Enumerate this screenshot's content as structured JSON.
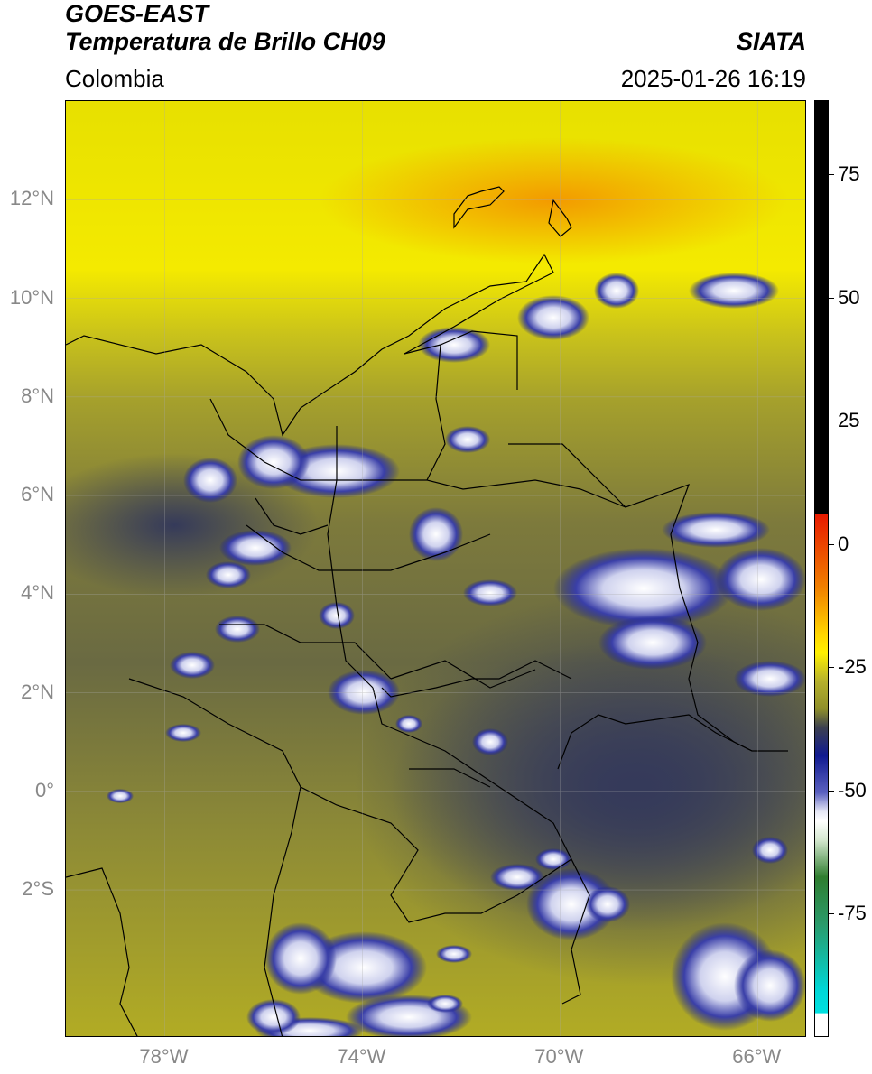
{
  "header": {
    "title_line1": "GOES-EAST",
    "title_line2": "Temperatura de Brillo CH09",
    "brand": "SIATA",
    "region": "Colombia",
    "datetime": "2025-01-26 16:19"
  },
  "axes": {
    "lat_ticks": [
      {
        "label": "12°N",
        "value": 12
      },
      {
        "label": "10°N",
        "value": 10
      },
      {
        "label": "8°N",
        "value": 8
      },
      {
        "label": "6°N",
        "value": 6
      },
      {
        "label": "4°N",
        "value": 4
      },
      {
        "label": "2°N",
        "value": 2
      },
      {
        "label": "0°",
        "value": 0
      },
      {
        "label": "2°S",
        "value": -2
      }
    ],
    "lon_ticks": [
      {
        "label": "78°W",
        "value": -78
      },
      {
        "label": "74°W",
        "value": -74
      },
      {
        "label": "70°W",
        "value": -70
      },
      {
        "label": "66°W",
        "value": -66
      }
    ],
    "lat_range": [
      -5.0,
      14.0
    ],
    "lon_range": [
      -80.0,
      -65.0
    ]
  },
  "colorbar": {
    "ticks": [
      {
        "label": "75",
        "value": 75
      },
      {
        "label": "50",
        "value": 50
      },
      {
        "label": "25",
        "value": 25
      },
      {
        "label": "0",
        "value": 0
      },
      {
        "label": "-25",
        "value": -25
      },
      {
        "label": "-50",
        "value": -50
      },
      {
        "label": "-75",
        "value": -75
      }
    ],
    "range": [
      -100,
      90
    ],
    "colors": {
      "above": "#000000",
      "red": "#e81a00",
      "orange": "#f08000",
      "yellow": "#fff000",
      "olive": "#8f8f2a",
      "slate": "#3c4050",
      "navy": "#101a90",
      "light": "#e6e8f6",
      "white": "#ffffff",
      "green": "#2f7d2f",
      "teal": "#00d6d6",
      "bottom": "#ffffff"
    }
  }
}
